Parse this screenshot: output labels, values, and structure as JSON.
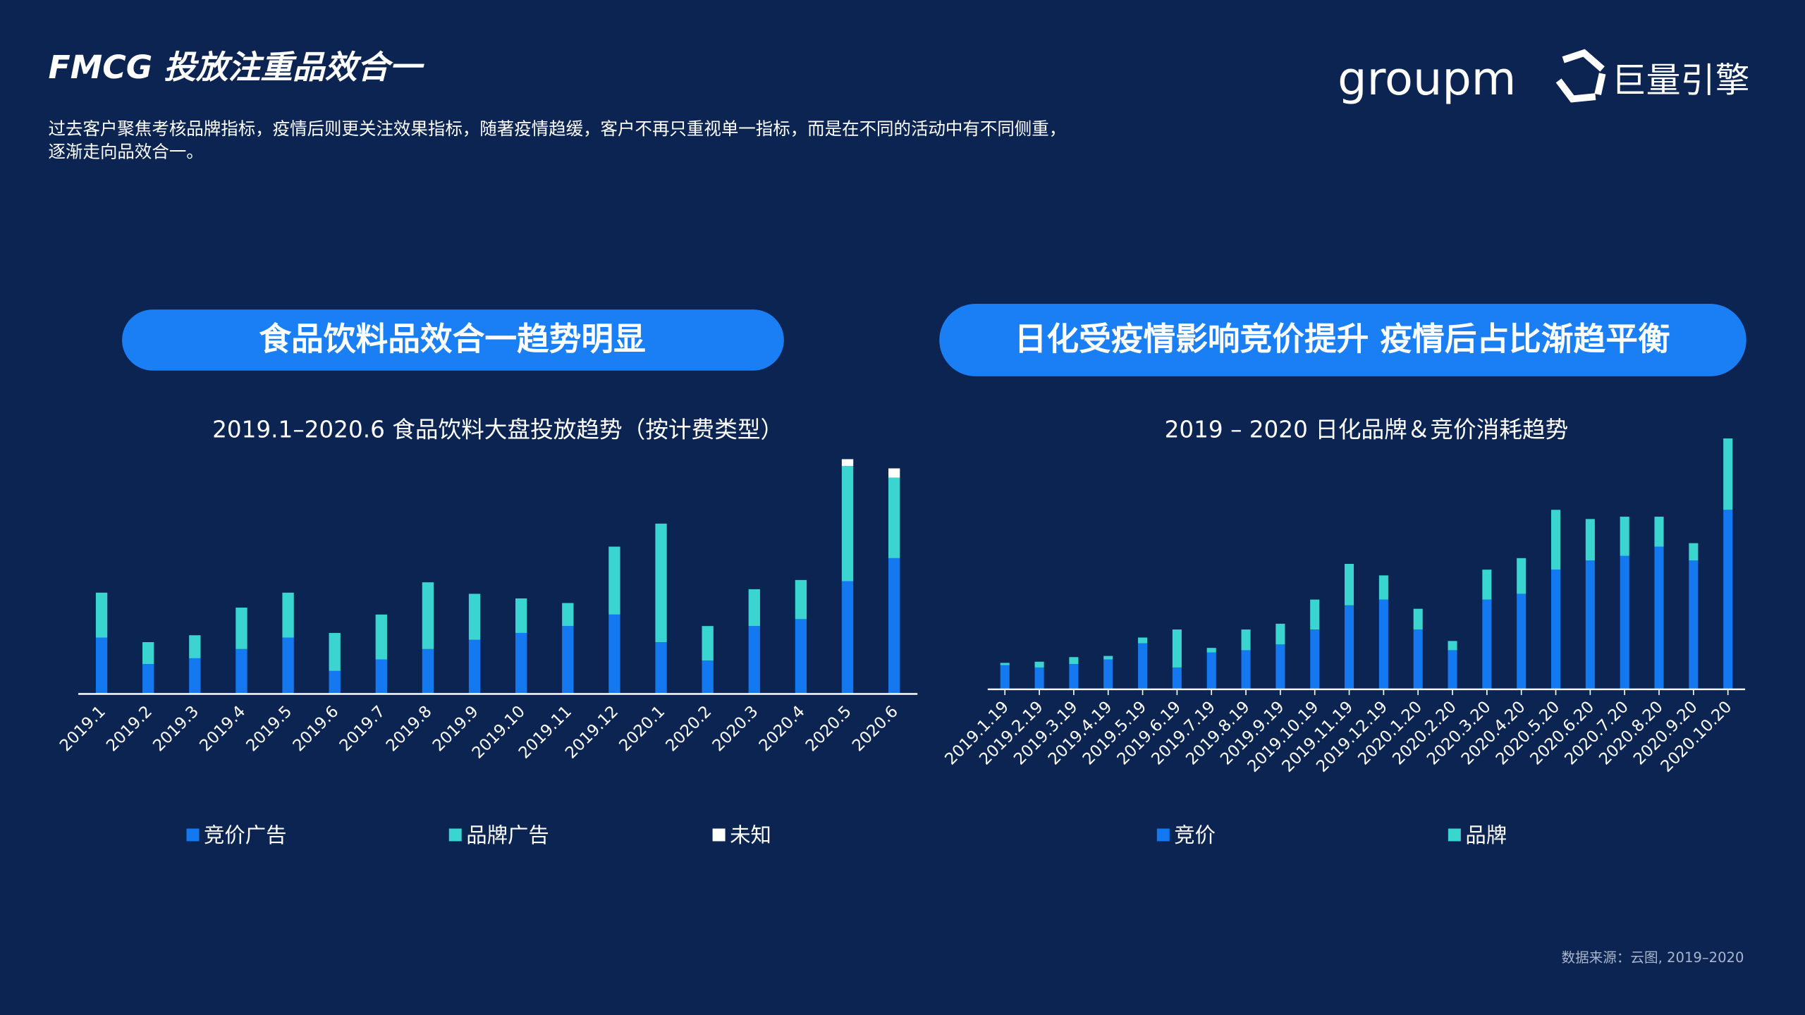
{
  "header": {
    "title": "FMCG 投放注重品效合一",
    "subtitle": [
      "过去客户聚焦考核品牌指标，疫情后则更关注效果指标，随著疫情趋缓，客户不再只重视单一指标，而是在不同的活动中有不同侧重，",
      "逐渐走向品效合一。"
    ],
    "logos": [
      "groupm",
      "巨量引擎"
    ]
  },
  "banners": [
    "食品饮料品效合一趋势明显",
    "日化受疫情影响竞价提升 疫情后占比渐趋平衡"
  ],
  "source": "数据来源：云图, 2019–2020",
  "chart_data": [
    {
      "type": "bar",
      "stacked": true,
      "title": "2019.1–2020.6 食品饮料大盘投放趋势（按计费类型）",
      "categories": [
        "2019.1",
        "2019.2",
        "2019.3",
        "2019.4",
        "2019.5",
        "2019.6",
        "2019.7",
        "2019.8",
        "2019.9",
        "2019.10",
        "2019.11",
        "2019.12",
        "2020.1",
        "2020.2",
        "2020.3",
        "2020.4",
        "2020.5",
        "2020.6"
      ],
      "series": [
        {
          "name": "竞价广告",
          "color": "#1478f0",
          "values": [
            49,
            26,
            31,
            39,
            49,
            20,
            30,
            39,
            47,
            53,
            59,
            69,
            45,
            29,
            59,
            65,
            98,
            118
          ]
        },
        {
          "name": "品牌广告",
          "color": "#3ad5d0",
          "values": [
            39,
            19,
            20,
            36,
            39,
            33,
            39,
            58,
            40,
            30,
            20,
            59,
            103,
            30,
            32,
            34,
            100,
            70
          ]
        },
        {
          "name": "未知",
          "color": "#ffffff",
          "values": [
            0,
            0,
            0,
            0,
            0,
            0,
            0,
            0,
            0,
            0,
            0,
            0,
            0,
            0,
            0,
            0,
            6,
            8
          ]
        }
      ],
      "ylim": [
        0,
        210
      ]
    },
    {
      "type": "bar",
      "stacked": true,
      "title": "2019 – 2020 日化品牌＆竞价消耗趋势",
      "categories": [
        "2019.1.19",
        "2019.2.19",
        "2019.3.19",
        "2019.4.19",
        "2019.5.19",
        "2019.6.19",
        "2019.7.19",
        "2019.8.19",
        "2019.9.19",
        "2019.10.19",
        "2019.11.19",
        "2019.12.19",
        "2020.1.20",
        "2020.2.20",
        "2020.3.20",
        "2020.4.20",
        "2020.5.20",
        "2020.6.20",
        "2020.7.20",
        "2020.8.20",
        "2020.9.20",
        "2020.10.20"
      ],
      "series": [
        {
          "name": "竞价",
          "color": "#1478f0",
          "values": [
            21,
            19,
            22,
            26,
            40,
            19,
            32,
            34,
            39,
            52,
            73,
            78,
            52,
            34,
            78,
            83,
            104,
            112,
            116,
            124,
            112,
            156
          ]
        },
        {
          "name": "品牌",
          "color": "#3ad5d0",
          "values": [
            2,
            5,
            6,
            3,
            5,
            33,
            4,
            18,
            18,
            26,
            36,
            21,
            18,
            8,
            26,
            31,
            52,
            36,
            34,
            26,
            15,
            62
          ]
        }
      ],
      "ylim": [
        0,
        220
      ]
    }
  ]
}
